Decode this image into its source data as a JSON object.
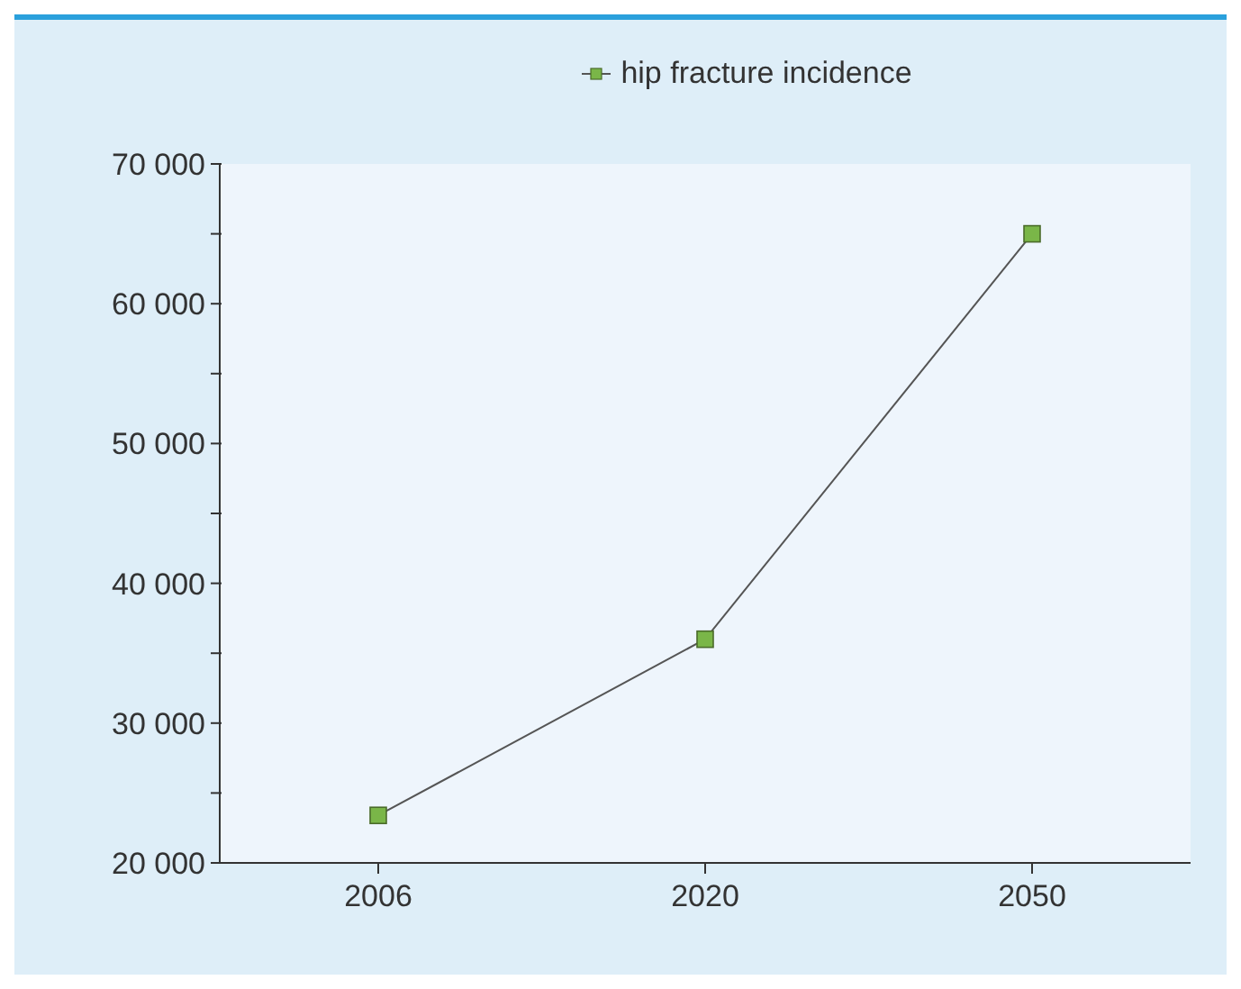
{
  "chart_data": {
    "type": "line",
    "categories": [
      "2006",
      "2020",
      "2050"
    ],
    "series": [
      {
        "name": "hip fracture incidence",
        "color": "#7ab648",
        "values": [
          23400,
          36000,
          65000
        ]
      }
    ],
    "ylim": [
      20000,
      70000
    ],
    "yticks": [
      {
        "value": 20000,
        "label": "20 000"
      },
      {
        "value": 25000,
        "label": null
      },
      {
        "value": 30000,
        "label": "30 000"
      },
      {
        "value": 35000,
        "label": null
      },
      {
        "value": 40000,
        "label": "40 000"
      },
      {
        "value": 45000,
        "label": null
      },
      {
        "value": 50000,
        "label": "50 000"
      },
      {
        "value": 55000,
        "label": null
      },
      {
        "value": 60000,
        "label": "60 000"
      },
      {
        "value": 65000,
        "label": null
      },
      {
        "value": 70000,
        "label": "70 000"
      }
    ],
    "grid": false,
    "legend": "top",
    "marker": "square",
    "line_style": "solid"
  }
}
